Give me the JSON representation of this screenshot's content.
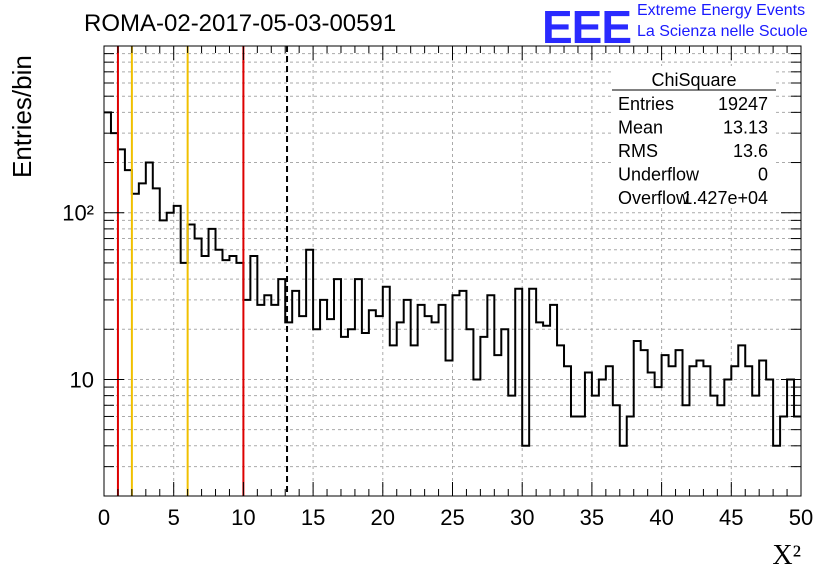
{
  "header": {
    "title": "ROMA-02-2017-05-03-00591",
    "logo_text": "EEE",
    "logo_line1": "Extreme Energy Events",
    "logo_line2": "La Scienza nelle Scuole",
    "logo_color": "#2a2aff"
  },
  "stats": {
    "name": "ChiSquare",
    "rows": [
      {
        "label": "Entries",
        "value": "19247"
      },
      {
        "label": "Mean",
        "value": "13.13"
      },
      {
        "label": "RMS",
        "value": "13.6"
      },
      {
        "label": "Underflow",
        "value": "0"
      },
      {
        "label": "Overflow",
        "value": "1.427e+04"
      }
    ]
  },
  "chart_data": {
    "type": "histogram",
    "xlabel": "X²",
    "ylabel": "Entries/bin",
    "xlim": [
      0,
      50
    ],
    "ylim": [
      2,
      1000
    ],
    "yscale": "log",
    "grid": true,
    "bin_width": 0.5,
    "x_ticks": [
      "0",
      "5",
      "10",
      "15",
      "20",
      "25",
      "30",
      "35",
      "40",
      "45",
      "50"
    ],
    "y_tick_labels": [
      {
        "value": 10,
        "label": "10"
      },
      {
        "value": 100,
        "label": "10²"
      }
    ],
    "values": [
      400,
      300,
      240,
      180,
      130,
      150,
      200,
      140,
      90,
      100,
      110,
      50,
      85,
      70,
      55,
      80,
      60,
      52,
      55,
      50,
      30,
      55,
      28,
      32,
      28,
      40,
      22,
      34,
      24,
      60,
      20,
      30,
      23,
      40,
      18,
      20,
      40,
      19,
      26,
      24,
      36,
      16,
      22,
      30,
      16,
      28,
      24,
      22,
      28,
      13,
      32,
      34,
      20,
      10,
      18,
      32,
      14,
      20,
      8,
      35,
      4,
      35,
      22,
      21,
      28,
      16,
      12,
      6,
      6,
      11,
      8,
      10,
      12,
      7,
      4,
      6,
      17,
      15,
      11,
      9,
      14,
      12,
      15,
      7,
      12,
      13,
      12,
      8,
      7,
      10,
      12,
      16,
      12,
      8,
      13,
      10,
      4,
      6,
      10,
      6
    ],
    "vlines": [
      {
        "x": 1,
        "color": "#dd0000",
        "style": "solid"
      },
      {
        "x": 2,
        "color": "#f0c000",
        "style": "solid"
      },
      {
        "x": 6,
        "color": "#f0c000",
        "style": "solid"
      },
      {
        "x": 10,
        "color": "#dd0000",
        "style": "solid"
      },
      {
        "x": 13.13,
        "color": "#000000",
        "style": "dashed"
      }
    ]
  }
}
